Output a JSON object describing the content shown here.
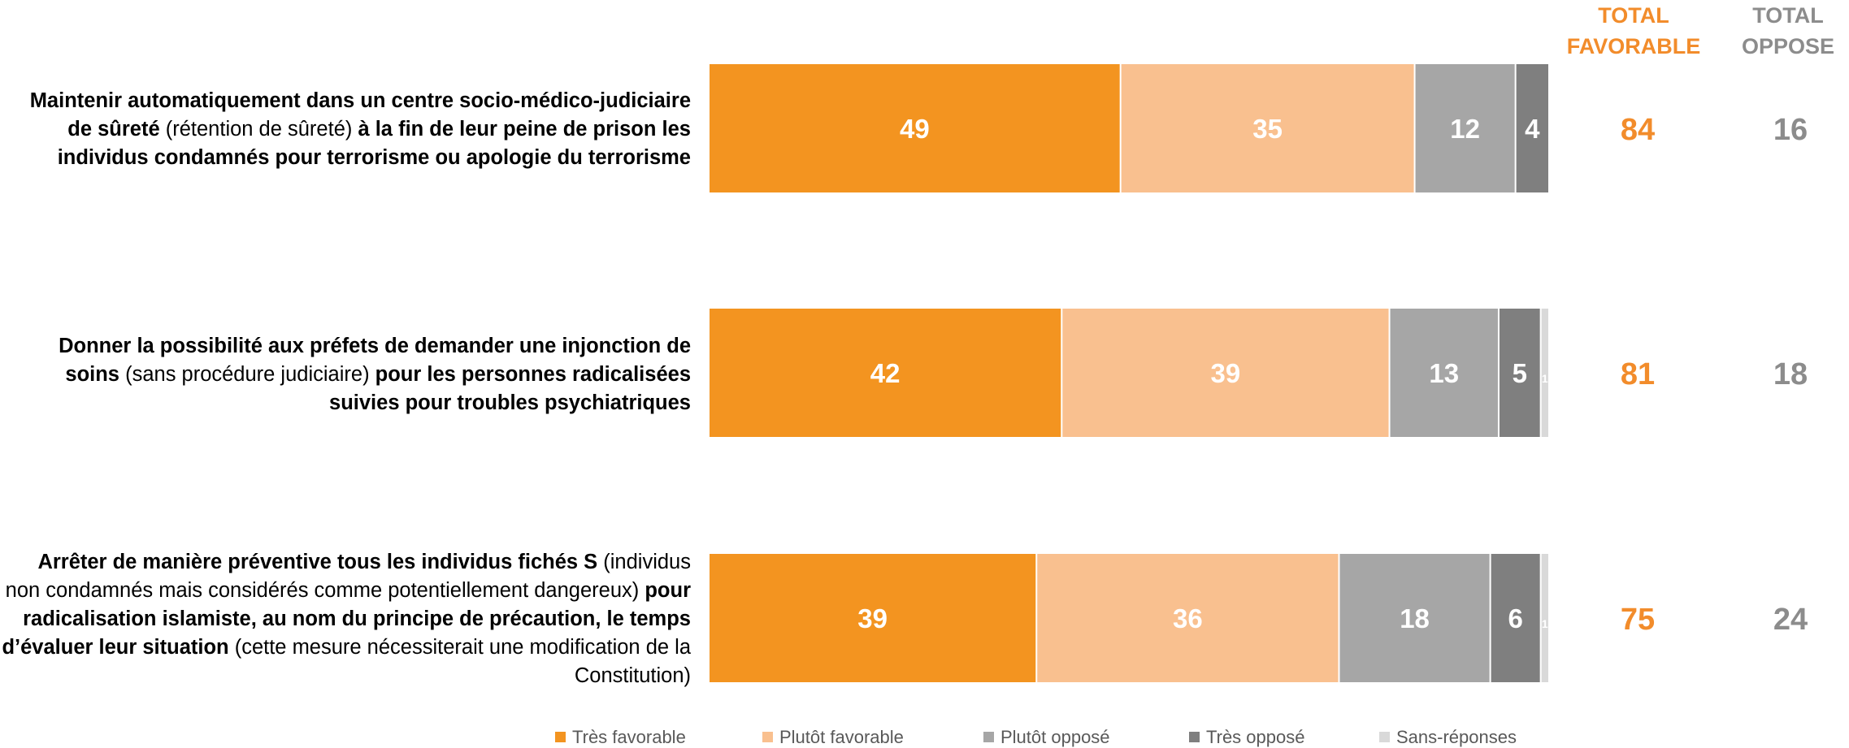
{
  "chart_data": {
    "type": "bar",
    "orientation": "horizontal",
    "stacked": true,
    "xlim": [
      0,
      100
    ],
    "grid": false,
    "legend_position": "bottom",
    "column_headers": {
      "total_favorable": "TOTAL\nFAVORABLE",
      "total_oppose": "TOTAL\nOPPOSE"
    },
    "series": [
      {
        "name": "Très favorable",
        "color": "#F39420",
        "values": [
          49,
          42,
          39
        ],
        "labels": [
          "49",
          "42",
          "39"
        ]
      },
      {
        "name": "Plutôt favorable",
        "color": "#F9C08F",
        "values": [
          35,
          39,
          36
        ],
        "labels": [
          "35",
          "39",
          "36"
        ]
      },
      {
        "name": "Plutôt opposé",
        "color": "#A6A6A6",
        "values": [
          12,
          13,
          18
        ],
        "labels": [
          "12",
          "13",
          "18"
        ]
      },
      {
        "name": "Très opposé",
        "color": "#7F7F7F",
        "values": [
          4,
          5,
          6
        ],
        "labels": [
          "4",
          "5",
          "6"
        ]
      },
      {
        "name": "Sans-réponses",
        "color": "#D9D9D9",
        "values": [
          0,
          1,
          1
        ],
        "labels": [
          "",
          "1",
          "1"
        ]
      }
    ],
    "categories": [
      {
        "parts": [
          {
            "text": "Maintenir automatiquement dans un centre socio-médico-judiciaire de sûreté",
            "bold": true
          },
          {
            "text": " (rétention de sûreté) ",
            "bold": false
          },
          {
            "text": "à la fin de leur peine de prison les individus condamnés pour terrorisme ou apologie du terrorisme",
            "bold": true
          }
        ],
        "total_favorable": "84",
        "total_oppose": "16"
      },
      {
        "parts": [
          {
            "text": "Donner la possibilité aux préfets de demander une injonction de soins",
            "bold": true
          },
          {
            "text": " (sans procédure judiciaire) ",
            "bold": false
          },
          {
            "text": "pour les personnes radicalisées suivies pour troubles psychiatriques",
            "bold": true
          }
        ],
        "total_favorable": "81",
        "total_oppose": "18"
      },
      {
        "parts": [
          {
            "text": "Arrêter de manière préventive tous les individus fichés S",
            "bold": true
          },
          {
            "text": " (individus non condamnés mais considérés comme potentiellement dangereux) ",
            "bold": false
          },
          {
            "text": "pour radicalisation islamiste, au nom du principe de précaution, le temps d’évaluer leur situation",
            "bold": true
          },
          {
            "text": " (cette mesure nécessiterait une modification de la Constitution)",
            "bold": false
          }
        ],
        "total_favorable": "75",
        "total_oppose": "24"
      }
    ]
  },
  "colors": {
    "total_favorable": "#F28C2B",
    "total_oppose": "#8C8C8C",
    "bar_label_light": "#FFFFFF"
  }
}
